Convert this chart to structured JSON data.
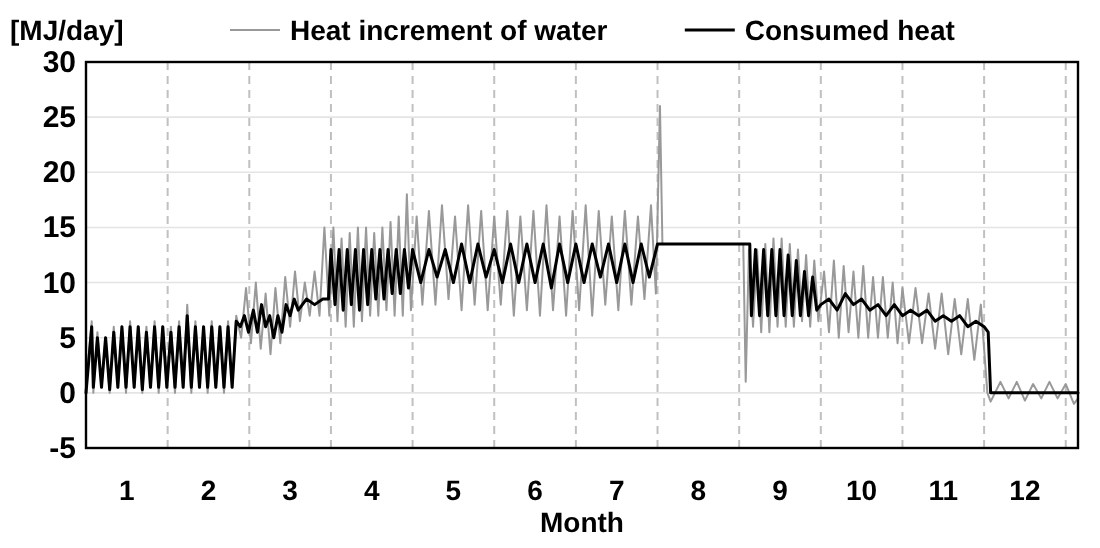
{
  "chart_data": {
    "type": "line",
    "ylabel": "[MJ/day]",
    "xlabel": "Month",
    "xlim": [
      0,
      12.15
    ],
    "ylim": [
      -5,
      30
    ],
    "xticks": [
      {
        "value": 0.5,
        "label": "1"
      },
      {
        "value": 1.5,
        "label": "2"
      },
      {
        "value": 2.5,
        "label": "3"
      },
      {
        "value": 3.5,
        "label": "4"
      },
      {
        "value": 4.5,
        "label": "5"
      },
      {
        "value": 5.5,
        "label": "6"
      },
      {
        "value": 6.5,
        "label": "7"
      },
      {
        "value": 7.5,
        "label": "8"
      },
      {
        "value": 8.5,
        "label": "9"
      },
      {
        "value": 9.5,
        "label": "10"
      },
      {
        "value": 10.5,
        "label": "11"
      },
      {
        "value": 11.5,
        "label": "12"
      }
    ],
    "yticks": [
      -5,
      0,
      5,
      10,
      15,
      20,
      25,
      30
    ],
    "grid": "y",
    "legend": "top",
    "marker": "none",
    "line_style": "solid",
    "ref_lines": [
      {
        "axis": "x",
        "value": 1,
        "color": "#c0c0c0",
        "line_style": "dashed"
      },
      {
        "axis": "x",
        "value": 2,
        "color": "#c0c0c0",
        "line_style": "dashed"
      },
      {
        "axis": "x",
        "value": 3,
        "color": "#c0c0c0",
        "line_style": "dashed"
      },
      {
        "axis": "x",
        "value": 4,
        "color": "#c0c0c0",
        "line_style": "dashed"
      },
      {
        "axis": "x",
        "value": 5,
        "color": "#c0c0c0",
        "line_style": "dashed"
      },
      {
        "axis": "x",
        "value": 6,
        "color": "#c0c0c0",
        "line_style": "dashed"
      },
      {
        "axis": "x",
        "value": 7,
        "color": "#c0c0c0",
        "line_style": "dashed"
      },
      {
        "axis": "x",
        "value": 8,
        "color": "#c0c0c0",
        "line_style": "dashed"
      },
      {
        "axis": "x",
        "value": 9,
        "color": "#c0c0c0",
        "line_style": "dashed"
      },
      {
        "axis": "x",
        "value": 10,
        "color": "#c0c0c0",
        "line_style": "dashed"
      },
      {
        "axis": "x",
        "value": 11,
        "color": "#c0c0c0",
        "line_style": "dashed"
      },
      {
        "axis": "x",
        "value": 12,
        "color": "#c0c0c0",
        "line_style": "dashed"
      }
    ],
    "series": [
      {
        "name": "Heat increment of water",
        "color": "#999999",
        "x": [
          0,
          0.07,
          0.09,
          0.14,
          0.19,
          0.24,
          0.29,
          0.34,
          0.39,
          0.44,
          0.49,
          0.54,
          0.59,
          0.64,
          0.69,
          0.74,
          0.79,
          0.84,
          0.89,
          0.94,
          0.99,
          1.04,
          1.09,
          1.14,
          1.19,
          1.24,
          1.29,
          1.34,
          1.39,
          1.44,
          1.49,
          1.54,
          1.59,
          1.64,
          1.69,
          1.74,
          1.79,
          1.84,
          1.9,
          1.96,
          2.02,
          2.08,
          2.14,
          2.2,
          2.26,
          2.32,
          2.38,
          2.44,
          2.5,
          2.56,
          2.62,
          2.68,
          2.74,
          2.8,
          2.86,
          2.92,
          2.98,
          3.03,
          3.08,
          3.13,
          3.18,
          3.23,
          3.28,
          3.33,
          3.38,
          3.43,
          3.48,
          3.53,
          3.58,
          3.63,
          3.68,
          3.73,
          3.78,
          3.83,
          3.88,
          3.93,
          3.98,
          4.05,
          4.12,
          4.2,
          4.28,
          4.36,
          4.44,
          4.52,
          4.6,
          4.68,
          4.76,
          4.84,
          4.92,
          5.0,
          5.08,
          5.16,
          5.24,
          5.32,
          5.4,
          5.48,
          5.56,
          5.64,
          5.72,
          5.8,
          5.88,
          5.96,
          6.04,
          6.12,
          6.2,
          6.28,
          6.36,
          6.44,
          6.52,
          6.6,
          6.68,
          6.76,
          6.84,
          6.92,
          6.98,
          7.03,
          7.06,
          7.1,
          8.05,
          8.08,
          8.12,
          8.17,
          8.22,
          8.27,
          8.32,
          8.37,
          8.42,
          8.47,
          8.52,
          8.57,
          8.62,
          8.67,
          8.72,
          8.77,
          8.82,
          8.87,
          8.92,
          8.97,
          9.04,
          9.1,
          9.16,
          9.22,
          9.28,
          9.34,
          9.4,
          9.46,
          9.52,
          9.58,
          9.64,
          9.7,
          9.76,
          9.82,
          9.88,
          9.94,
          10.0,
          10.08,
          10.16,
          10.24,
          10.32,
          10.4,
          10.48,
          10.56,
          10.64,
          10.72,
          10.8,
          10.88,
          10.96,
          11.04,
          11.08,
          11.2,
          11.3,
          11.4,
          11.5,
          11.6,
          11.7,
          11.8,
          11.9,
          12.0,
          12.1,
          12.15
        ],
        "values": [
          0.5,
          6.5,
          0,
          5.5,
          0.5,
          5,
          0,
          6,
          0.5,
          6,
          0,
          6.5,
          0.5,
          6,
          0,
          6,
          0.5,
          6.5,
          0,
          6,
          0.5,
          6,
          0,
          6.5,
          0.5,
          8,
          0,
          6.5,
          0.5,
          6,
          0,
          6.5,
          0.5,
          6,
          0,
          6.5,
          0.5,
          7,
          5,
          9.5,
          4.5,
          10,
          4,
          9,
          3.5,
          9.5,
          4.5,
          10.5,
          6,
          11,
          6.5,
          10,
          7,
          11,
          7,
          15,
          7,
          15,
          6.5,
          14,
          6,
          14.5,
          6,
          15,
          6.5,
          15,
          7,
          14.5,
          7,
          15,
          7.5,
          15.5,
          7,
          16,
          7,
          18,
          7.5,
          16,
          8,
          16.5,
          8,
          17,
          8.5,
          16,
          7.5,
          17,
          8,
          16.5,
          7.5,
          16,
          8,
          16.5,
          7,
          16,
          7.5,
          16.5,
          7,
          17,
          7.5,
          16,
          7,
          16.5,
          7.5,
          17,
          7,
          16.5,
          8,
          16,
          7.5,
          16.5,
          8,
          16,
          8.5,
          17,
          9,
          26,
          13.5,
          13.5,
          13.5,
          1,
          13,
          6,
          13,
          5.5,
          13.5,
          5.5,
          14,
          6,
          14,
          6,
          13.5,
          6,
          13,
          6.5,
          12.5,
          6,
          12,
          6.5,
          11,
          5.5,
          12,
          5,
          11.5,
          5.5,
          11,
          5,
          11.5,
          5,
          10.5,
          5,
          10.5,
          5,
          10,
          4.5,
          9.5,
          4.5,
          9.5,
          4.5,
          9,
          4,
          9,
          3.5,
          8.5,
          3.5,
          8.5,
          3,
          8,
          0,
          -0.8,
          1,
          -0.5,
          1,
          -0.7,
          0.8,
          -0.5,
          1,
          -0.5,
          0.8,
          -1,
          -0.5
        ]
      },
      {
        "name": "Consumed heat",
        "color": "#000000",
        "x": [
          0,
          0.07,
          0.09,
          0.14,
          0.19,
          0.24,
          0.29,
          0.34,
          0.39,
          0.44,
          0.49,
          0.54,
          0.59,
          0.64,
          0.69,
          0.74,
          0.79,
          0.84,
          0.89,
          0.94,
          0.99,
          1.04,
          1.09,
          1.14,
          1.19,
          1.24,
          1.29,
          1.34,
          1.39,
          1.44,
          1.49,
          1.54,
          1.59,
          1.64,
          1.69,
          1.74,
          1.79,
          1.84,
          1.89,
          1.94,
          1.99,
          2.05,
          2.1,
          2.15,
          2.2,
          2.25,
          2.3,
          2.35,
          2.4,
          2.45,
          2.5,
          2.55,
          2.6,
          2.7,
          2.8,
          2.9,
          2.97,
          3.0,
          3.05,
          3.1,
          3.15,
          3.2,
          3.25,
          3.3,
          3.35,
          3.4,
          3.45,
          3.5,
          3.55,
          3.6,
          3.65,
          3.7,
          3.75,
          3.8,
          3.85,
          3.9,
          3.95,
          4.0,
          4.1,
          4.2,
          4.3,
          4.4,
          4.5,
          4.6,
          4.7,
          4.8,
          4.9,
          5.0,
          5.1,
          5.2,
          5.3,
          5.4,
          5.5,
          5.6,
          5.7,
          5.8,
          5.9,
          6.0,
          6.1,
          6.2,
          6.3,
          6.4,
          6.5,
          6.6,
          6.7,
          6.8,
          6.9,
          7.0,
          7.05,
          8.13,
          8.15,
          8.2,
          8.25,
          8.3,
          8.35,
          8.4,
          8.45,
          8.5,
          8.55,
          8.6,
          8.65,
          8.7,
          8.75,
          8.8,
          8.85,
          8.9,
          8.95,
          9.0,
          9.1,
          9.2,
          9.3,
          9.4,
          9.5,
          9.6,
          9.7,
          9.8,
          9.9,
          10.0,
          10.1,
          10.2,
          10.3,
          10.4,
          10.5,
          10.6,
          10.7,
          10.8,
          10.9,
          11.0,
          11.05,
          11.08,
          12.15
        ],
        "values": [
          0,
          6,
          0.5,
          5,
          0.5,
          5,
          0.3,
          5.5,
          0.5,
          6,
          0.5,
          6,
          0.5,
          6,
          0.3,
          5.5,
          0.5,
          6,
          0.5,
          6,
          0.5,
          5.5,
          0.5,
          6,
          0.5,
          7,
          0.5,
          6,
          0.5,
          6,
          0.5,
          6,
          0.5,
          6,
          0.5,
          6,
          0.5,
          6.5,
          6,
          7,
          5.5,
          7.5,
          5.5,
          8,
          6,
          7,
          5,
          7,
          5.5,
          8,
          7,
          8.5,
          7.5,
          8.5,
          8,
          8.5,
          8.5,
          13,
          8,
          13,
          7.5,
          13,
          8,
          13,
          7.5,
          13,
          8,
          13,
          8.5,
          13,
          8.5,
          13,
          9,
          13,
          9,
          13,
          9.5,
          13,
          10,
          13,
          10.5,
          13,
          10,
          13.5,
          10,
          13.5,
          10.5,
          13,
          10,
          13.5,
          10,
          13.5,
          10,
          13.5,
          9.5,
          13.5,
          10,
          13.5,
          10,
          13.5,
          10.5,
          13.5,
          10,
          13.5,
          10,
          13.5,
          10.5,
          13.5,
          13.5,
          13.5,
          7,
          13,
          7,
          13,
          7,
          13,
          7,
          13,
          7,
          12.5,
          7,
          12,
          7,
          11,
          7,
          10.5,
          7.5,
          8,
          8.5,
          7.5,
          9,
          8,
          8.5,
          7.5,
          8,
          7,
          8,
          7,
          7.5,
          7,
          7.5,
          6.5,
          7,
          6.5,
          7,
          6,
          6.5,
          6,
          5.5,
          0,
          0
        ]
      }
    ]
  }
}
